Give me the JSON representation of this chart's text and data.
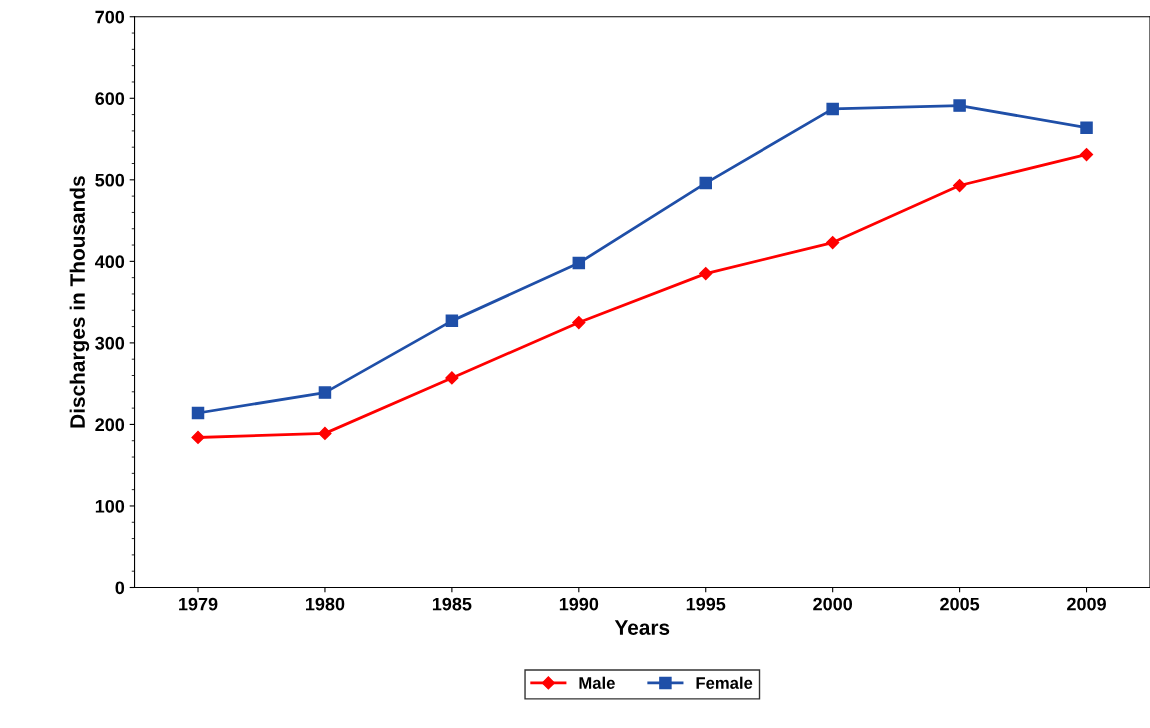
{
  "chart_data": {
    "type": "line",
    "xlabel": "Years",
    "ylabel": "Discharges in Thousands",
    "categories": [
      "1979",
      "1980",
      "1985",
      "1990",
      "1995",
      "2000",
      "2005",
      "2009"
    ],
    "series": [
      {
        "name": "Male",
        "color": "#ff0000",
        "marker": "diamond",
        "values": [
          184,
          189,
          257,
          325,
          385,
          423,
          493,
          531
        ]
      },
      {
        "name": "Female",
        "color": "#1f4fa8",
        "marker": "square",
        "values": [
          214,
          239,
          327,
          398,
          496,
          587,
          591,
          564
        ]
      }
    ],
    "ylim": [
      0,
      700
    ],
    "yticks": [
      0,
      100,
      200,
      300,
      400,
      500,
      600,
      700
    ],
    "grid": false,
    "legend": "bottom",
    "line_style": "solid"
  }
}
